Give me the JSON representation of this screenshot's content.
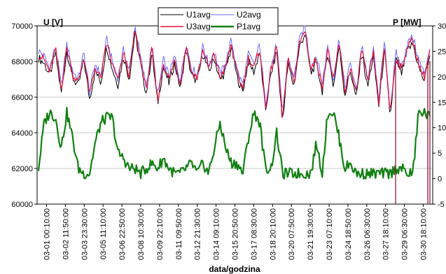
{
  "chart_data": {
    "type": "line",
    "xlabel": "data/godzina",
    "ylabel_left": "U [V]",
    "ylabel_right": "P [MW]",
    "ylim_left": [
      60000,
      70000
    ],
    "yticks_left": [
      "60000",
      "62000",
      "64000",
      "66000",
      "68000",
      "70000"
    ],
    "ylim_right": [
      -5,
      30
    ],
    "yticks_right": [
      "-5",
      "0",
      "5",
      "10",
      "15",
      "20",
      "25",
      "30"
    ],
    "x_tick_labels": [
      "03-01 00:10:00",
      "03-02 11:50:00",
      "03-03 23:30:00",
      "03-05 11:10:00",
      "03-06 22:50:00",
      "03-08 10:30:00",
      "03-09 22:10:00",
      "03-11 09:50:00",
      "03-12 21:30:00",
      "03-14 09:10:00",
      "03-15 20:50:00",
      "03-17 08:30:00",
      "03-18 20:10:00",
      "03-20 07:50:00",
      "03-21 19:30:00",
      "03-23 07:10:00",
      "03-24 18:50:00",
      "03-26 06:30:00",
      "03-27 18:10:00",
      "03-29 06:30:00",
      "03-30 18:10:00"
    ],
    "grid": "horizontal-major",
    "legend_position": "top-center",
    "series": [
      {
        "name": "U1avg",
        "axis": "left",
        "color": "#000000",
        "values": [
          68200,
          67900,
          67200,
          68500,
          66200,
          68600,
          67100,
          66600,
          68100,
          65900,
          67500,
          66800,
          68900,
          67600,
          66700,
          68300,
          67000,
          69600,
          67800,
          66200,
          68500,
          65600,
          67700,
          66800,
          67900,
          66500,
          68700,
          67200,
          66900,
          68500,
          67400,
          68200,
          66900,
          67500,
          68800,
          67100,
          66300,
          68000,
          67400,
          68600,
          65200,
          67300,
          68600,
          64600,
          67900,
          66600,
          68800,
          69600,
          67300,
          68000,
          66300,
          68500,
          66600,
          68900,
          66100,
          67500,
          65900,
          68600,
          66500,
          68300,
          65500,
          68700,
          64900,
          68100,
          67300,
          68600,
          69000,
          67700,
          66900,
          68400
        ]
      },
      {
        "name": "U2avg",
        "axis": "left",
        "color": "#6b6bff",
        "values": [
          68600,
          68300,
          67600,
          68900,
          66600,
          69000,
          67500,
          67000,
          68500,
          66300,
          67900,
          67200,
          69300,
          68000,
          67100,
          68700,
          67400,
          70000,
          68200,
          66600,
          68900,
          66000,
          68100,
          67200,
          68300,
          66900,
          69100,
          67600,
          67300,
          68900,
          67800,
          68600,
          67300,
          67900,
          69200,
          67500,
          66700,
          68400,
          67800,
          69000,
          65600,
          67700,
          69000,
          65000,
          68300,
          67000,
          69200,
          70000,
          67700,
          68400,
          66700,
          68900,
          67000,
          69300,
          66500,
          67900,
          66300,
          69000,
          66900,
          68700,
          65900,
          69100,
          65300,
          68500,
          67700,
          69000,
          69400,
          68100,
          67300,
          68800
        ]
      },
      {
        "name": "U3avg",
        "axis": "left",
        "color": "#e0103a",
        "values": [
          68400,
          68100,
          67400,
          68700,
          66400,
          68800,
          67300,
          66800,
          68300,
          66100,
          67700,
          67000,
          69100,
          67800,
          66900,
          68500,
          67200,
          69800,
          68000,
          66400,
          68700,
          65800,
          67900,
          67000,
          68100,
          66700,
          68900,
          67400,
          67100,
          68700,
          67600,
          68400,
          67100,
          67700,
          69000,
          67300,
          66500,
          68200,
          67600,
          68800,
          65400,
          67500,
          68800,
          64800,
          68100,
          66800,
          69000,
          69800,
          67500,
          68200,
          66500,
          68700,
          66800,
          69100,
          66300,
          67700,
          66100,
          68800,
          66700,
          68500,
          65700,
          68900,
          65100,
          68300,
          67500,
          68800,
          69200,
          67900,
          67100,
          68600
        ]
      },
      {
        "name": "P1avg",
        "axis": "right",
        "color": "#128012",
        "values": [
          2,
          11,
          13,
          12,
          6,
          13,
          8,
          2,
          1,
          1,
          7,
          11,
          12,
          12,
          5,
          4,
          2,
          2,
          1,
          2,
          3,
          2,
          4,
          2,
          1,
          1,
          2,
          3,
          1,
          3,
          1,
          6,
          11,
          6,
          3,
          3,
          1,
          8,
          13,
          11,
          2,
          2,
          9,
          1,
          1,
          1,
          1,
          1,
          1,
          7,
          1,
          13,
          13,
          8,
          2,
          3,
          1,
          1,
          1,
          1,
          1,
          1,
          1,
          2,
          2,
          1,
          1,
          13,
          13,
          12
        ]
      }
    ],
    "x_span_days": [
      0,
      30.5
    ]
  }
}
